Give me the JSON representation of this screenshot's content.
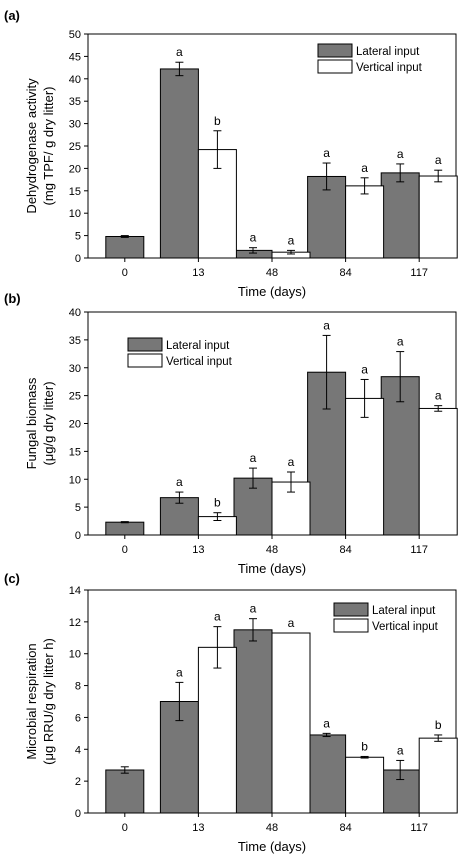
{
  "colors": {
    "lateral": "#777777",
    "vertical": "#ffffff",
    "stroke": "#000000"
  },
  "chart_data": [
    {
      "panel": "(a)",
      "type": "bar",
      "categories": [
        "0",
        "13",
        "48",
        "84",
        "117"
      ],
      "xlabel": "Time (days)",
      "ylabel": [
        "Dehydrogenase activity",
        "(mg TPF/ g dry litter)"
      ],
      "ylim": [
        0,
        50
      ],
      "yticks": [
        0,
        5,
        10,
        15,
        20,
        25,
        30,
        35,
        40,
        45,
        50
      ],
      "legend": "top-right",
      "grid": false,
      "series": [
        {
          "name": "Lateral input",
          "values": [
            4.8,
            42.2,
            1.7,
            18.2,
            19.0
          ],
          "errors": [
            0.2,
            1.5,
            0.6,
            3.0,
            2.0
          ],
          "letters": [
            "",
            "a",
            "a",
            "a",
            "a"
          ]
        },
        {
          "name": "Vertical input",
          "values": [
            null,
            24.2,
            1.3,
            16.1,
            18.3
          ],
          "errors": [
            null,
            4.2,
            0.4,
            1.8,
            1.3
          ],
          "letters": [
            "",
            "b",
            "a",
            "a",
            "a"
          ]
        }
      ]
    },
    {
      "panel": "(b)",
      "type": "bar",
      "categories": [
        "0",
        "13",
        "48",
        "84",
        "117"
      ],
      "xlabel": "Time (days)",
      "ylabel": [
        "Fungal biomass",
        "(μg/g dry litter)"
      ],
      "ylim": [
        0,
        40
      ],
      "yticks": [
        0,
        5,
        10,
        15,
        20,
        25,
        30,
        35,
        40
      ],
      "legend": "top-left",
      "grid": false,
      "series": [
        {
          "name": "Lateral input",
          "values": [
            2.3,
            6.7,
            10.2,
            29.2,
            28.4
          ],
          "errors": [
            0.1,
            1.0,
            1.8,
            6.6,
            4.5
          ],
          "letters": [
            "",
            "a",
            "a",
            "a",
            "a"
          ]
        },
        {
          "name": "Vertical input",
          "values": [
            null,
            3.3,
            9.5,
            24.5,
            22.7
          ],
          "errors": [
            null,
            0.7,
            1.8,
            3.4,
            0.5
          ],
          "letters": [
            "",
            "b",
            "a",
            "a",
            "a"
          ]
        }
      ]
    },
    {
      "panel": "(c)",
      "type": "bar",
      "categories": [
        "0",
        "13",
        "48",
        "84",
        "117"
      ],
      "xlabel": "Time (days)",
      "ylabel": [
        "Microbial respiration",
        "(μg RRU/g dry litter h)"
      ],
      "ylim": [
        0,
        14
      ],
      "yticks": [
        0,
        2,
        4,
        6,
        8,
        10,
        12,
        14
      ],
      "legend": "top-right",
      "grid": false,
      "series": [
        {
          "name": "Lateral input",
          "values": [
            2.7,
            7.0,
            11.5,
            4.9,
            2.7
          ],
          "errors": [
            0.2,
            1.2,
            0.7,
            0.1,
            0.6
          ],
          "letters": [
            "",
            "a",
            "a",
            "a",
            "a"
          ]
        },
        {
          "name": "Vertical input",
          "values": [
            null,
            10.4,
            11.3,
            3.5,
            4.7
          ],
          "errors": [
            null,
            1.3,
            0.0,
            0.05,
            0.2
          ],
          "letters": [
            "",
            "a",
            "a",
            "b",
            "b"
          ]
        }
      ]
    }
  ]
}
